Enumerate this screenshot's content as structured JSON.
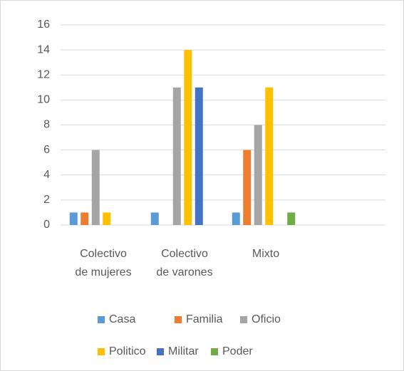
{
  "chart_data": {
    "type": "bar",
    "categories": [
      "Colectivo de mujeres",
      "Colectivo de varones",
      "Mixto",
      null
    ],
    "series": [
      {
        "name": "Casa",
        "color": "#5b9bd5",
        "values": [
          1,
          1,
          1,
          null
        ]
      },
      {
        "name": "Familia",
        "color": "#ed7d31",
        "values": [
          1,
          0,
          6,
          null
        ]
      },
      {
        "name": "Oficio",
        "color": "#a5a5a5",
        "values": [
          6,
          11,
          8,
          null
        ]
      },
      {
        "name": "Politico",
        "color": "#ffc000",
        "values": [
          1,
          14,
          11,
          null
        ]
      },
      {
        "name": "Militar",
        "color": "#4472c4",
        "values": [
          0,
          11,
          0,
          null
        ]
      },
      {
        "name": "Poder",
        "color": "#70ad47",
        "values": [
          0,
          0,
          1,
          null
        ]
      }
    ],
    "ylim": [
      0,
      16
    ],
    "yticks": [
      0,
      2,
      4,
      6,
      8,
      10,
      12,
      14,
      16
    ],
    "grid": true,
    "legend": "bottom"
  }
}
